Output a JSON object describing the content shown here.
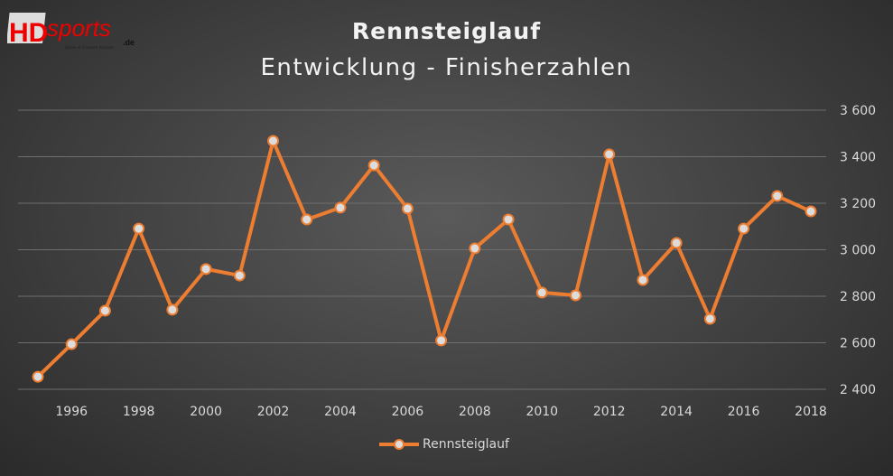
{
  "logo": {
    "text": "HDsports.de",
    "tagline": "Home of Distance Runners"
  },
  "chart_data": {
    "type": "line",
    "title": "Rennsteiglauf",
    "subtitle": "Entwicklung - Finisherzahlen",
    "xlabel": "",
    "ylabel": "",
    "x": [
      1995,
      1996,
      1997,
      1998,
      1999,
      2000,
      2001,
      2002,
      2003,
      2004,
      2005,
      2006,
      2007,
      2008,
      2009,
      2010,
      2011,
      2012,
      2013,
      2014,
      2015,
      2016,
      2017,
      2018
    ],
    "x_tick_labels": [
      "1996",
      "1998",
      "2000",
      "2002",
      "2004",
      "2006",
      "2008",
      "2010",
      "2012",
      "2014",
      "2016",
      "2018"
    ],
    "y_tick_labels": [
      "2 400",
      "2 600",
      "2 800",
      "3 000",
      "3 200",
      "3 400",
      "3 600"
    ],
    "y_ticks": [
      2400,
      2600,
      2800,
      3000,
      3200,
      3400,
      3600
    ],
    "ylim": [
      2400,
      3600
    ],
    "grid": true,
    "legend_position": "bottom",
    "series": [
      {
        "name": "Rennsteiglauf",
        "color": "#ed7d31",
        "values": [
          2454,
          2594,
          2738,
          3091,
          2742,
          2917,
          2889,
          3468,
          3130,
          3181,
          3363,
          3177,
          2610,
          3006,
          3130,
          2816,
          2804,
          3410,
          2870,
          3029,
          2703,
          3091,
          3231,
          3165
        ]
      }
    ]
  }
}
